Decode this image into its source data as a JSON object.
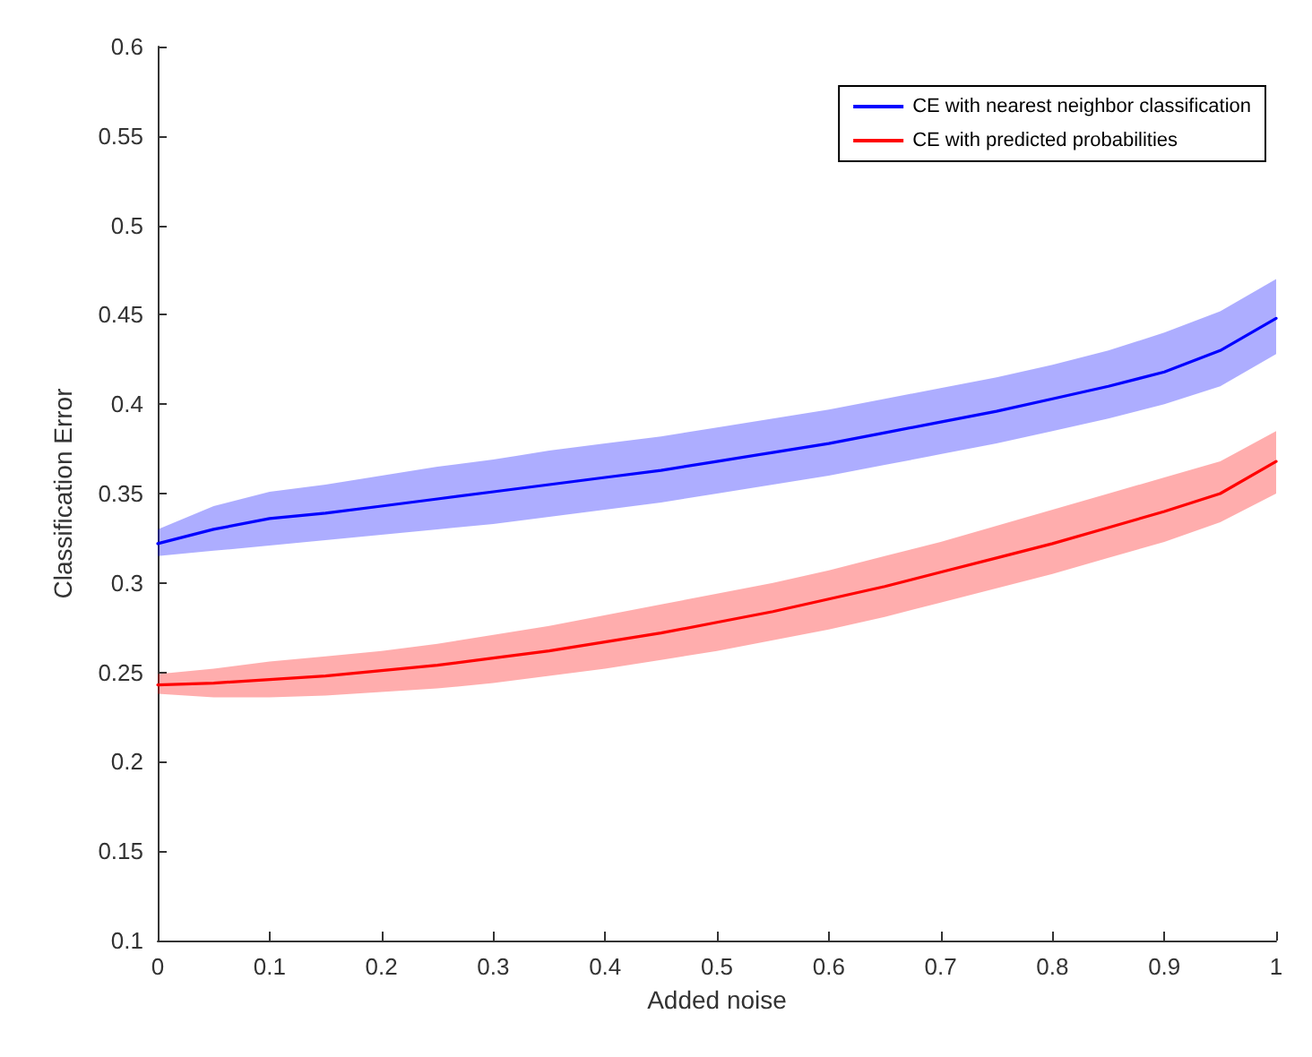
{
  "chart_data": {
    "type": "line",
    "xlabel": "Added noise",
    "ylabel": "Classification Error",
    "x": [
      0,
      0.05,
      0.1,
      0.15,
      0.2,
      0.25,
      0.3,
      0.35,
      0.4,
      0.45,
      0.5,
      0.55,
      0.6,
      0.65,
      0.7,
      0.75,
      0.8,
      0.85,
      0.9,
      0.95,
      1
    ],
    "series": [
      {
        "name": "CE with nearest neighbor classification",
        "color": "#0000ff",
        "values": [
          0.322,
          0.33,
          0.336,
          0.339,
          0.343,
          0.347,
          0.351,
          0.355,
          0.359,
          0.363,
          0.368,
          0.373,
          0.378,
          0.384,
          0.39,
          0.396,
          0.403,
          0.41,
          0.418,
          0.43,
          0.448
        ],
        "lower": [
          0.315,
          0.318,
          0.321,
          0.324,
          0.327,
          0.33,
          0.333,
          0.337,
          0.341,
          0.345,
          0.35,
          0.355,
          0.36,
          0.366,
          0.372,
          0.378,
          0.385,
          0.392,
          0.4,
          0.41,
          0.428
        ],
        "upper": [
          0.33,
          0.343,
          0.351,
          0.355,
          0.36,
          0.365,
          0.369,
          0.374,
          0.378,
          0.382,
          0.387,
          0.392,
          0.397,
          0.403,
          0.409,
          0.415,
          0.422,
          0.43,
          0.44,
          0.452,
          0.47
        ]
      },
      {
        "name": "CE with predicted probabilities",
        "color": "#ff0000",
        "values": [
          0.243,
          0.244,
          0.246,
          0.248,
          0.251,
          0.254,
          0.258,
          0.262,
          0.267,
          0.272,
          0.278,
          0.284,
          0.291,
          0.298,
          0.306,
          0.314,
          0.322,
          0.331,
          0.34,
          0.35,
          0.368
        ],
        "lower": [
          0.238,
          0.236,
          0.236,
          0.237,
          0.239,
          0.241,
          0.244,
          0.248,
          0.252,
          0.257,
          0.262,
          0.268,
          0.274,
          0.281,
          0.289,
          0.297,
          0.305,
          0.314,
          0.323,
          0.334,
          0.35
        ],
        "upper": [
          0.249,
          0.252,
          0.256,
          0.259,
          0.262,
          0.266,
          0.271,
          0.276,
          0.282,
          0.288,
          0.294,
          0.3,
          0.307,
          0.315,
          0.323,
          0.332,
          0.341,
          0.35,
          0.359,
          0.368,
          0.385
        ]
      }
    ],
    "xlim": [
      0,
      1
    ],
    "xticks": [
      0,
      0.1,
      0.2,
      0.3,
      0.4,
      0.5,
      0.6,
      0.7,
      0.8,
      0.9,
      1
    ],
    "ylim": [
      0.1,
      0.6
    ],
    "yticks": [
      0.1,
      0.15,
      0.2,
      0.25,
      0.3,
      0.35,
      0.4,
      0.45,
      0.5,
      0.55,
      0.6
    ],
    "grid": false,
    "legend": "top right",
    "marker": "none",
    "line_style": "solid"
  }
}
